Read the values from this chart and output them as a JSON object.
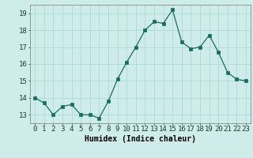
{
  "x": [
    0,
    1,
    2,
    3,
    4,
    5,
    6,
    7,
    8,
    9,
    10,
    11,
    12,
    13,
    14,
    15,
    16,
    17,
    18,
    19,
    20,
    21,
    22,
    23
  ],
  "y": [
    14.0,
    13.7,
    13.0,
    13.5,
    13.6,
    13.0,
    13.0,
    12.8,
    13.8,
    15.1,
    16.1,
    17.0,
    18.0,
    18.5,
    18.4,
    19.2,
    17.3,
    16.9,
    17.0,
    17.7,
    16.7,
    15.5,
    15.1,
    15.0
  ],
  "xlabel": "Humidex (Indice chaleur)",
  "ylim": [
    12.5,
    19.5
  ],
  "xlim": [
    -0.5,
    23.5
  ],
  "bg_color": "#ceecea",
  "grid_color": "#aed8d4",
  "line_color": "#1a6b5e",
  "marker_color": "#1a6b5e",
  "ytick_vals": [
    13,
    14,
    15,
    16,
    17,
    18,
    19
  ],
  "label_fontsize": 7,
  "tick_fontsize": 6.5
}
